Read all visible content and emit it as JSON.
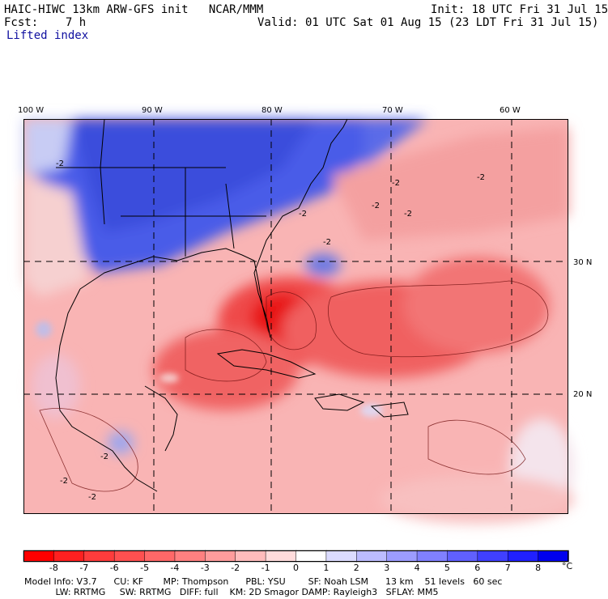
{
  "header": {
    "model": "HAIC-HIWC 13km ARW-GFS init   NCAR/MMM",
    "init": "Init: 18 UTC Fri 31 Jul 15",
    "fcst": "Fcst:    7 h",
    "valid": "Valid: 01 UTC Sat 01 Aug 15 (23 LDT Fri 31 Jul 15)",
    "field": "Lifted index"
  },
  "map": {
    "lon_labels": [
      "100 W",
      "90 W",
      "80 W",
      "70 W",
      "60 W"
    ],
    "lat_labels": [
      "30 N",
      "20 N"
    ],
    "contour_label": "-2",
    "colors": {
      "negative": "#e83030",
      "positive": "#3030e0",
      "ocean_base": "#f8b0b0"
    }
  },
  "colorbar": {
    "ticks": [
      "-8",
      "-7",
      "-6",
      "-5",
      "-4",
      "-3",
      "-2",
      "-1",
      "0",
      "1",
      "2",
      "3",
      "4",
      "5",
      "6",
      "7",
      "8"
    ],
    "unit": "°C",
    "colors": [
      "#ff0000",
      "#ff2020",
      "#ff3c3c",
      "#ff5050",
      "#ff6868",
      "#ff8080",
      "#ff9c9c",
      "#ffbcbc",
      "#ffdcdc",
      "#ffffff",
      "#dcdcff",
      "#bcbcff",
      "#9c9cff",
      "#8080ff",
      "#6060ff",
      "#4040ff",
      "#2020ff",
      "#0000ee"
    ]
  },
  "model_info": {
    "line1": "Model Info: V3.7      CU: KF       MP: Thompson      PBL: YSU        SF: Noah LSM      13 km    51 levels   60 sec",
    "line2": "           LW: RRTMG     SW: RRTMG   DIFF: full    KM: 2D Smagor DAMP: Rayleigh3   SFLAY: MM5"
  }
}
